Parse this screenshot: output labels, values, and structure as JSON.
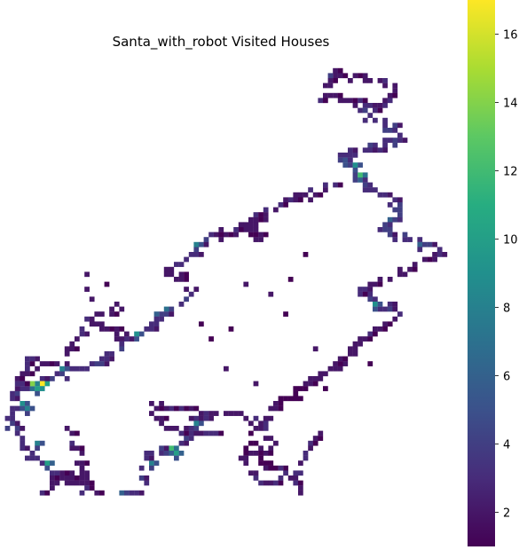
{
  "chart_data": {
    "type": "heatmap",
    "title": "Santa_with_robot Visited Houses",
    "xlabel": "",
    "ylabel": "",
    "colormap": "viridis",
    "colorbar": {
      "min": 1,
      "max": 17,
      "ticks": [
        2,
        4,
        6,
        8,
        10,
        12,
        14,
        16
      ]
    },
    "grid": false,
    "axes_visible": false,
    "segments": [
      {
        "from": [
          67,
          3
        ],
        "to": [
          64,
          8
        ],
        "value": 2,
        "hot": [
          [
            66,
            4,
            4
          ]
        ]
      },
      {
        "from": [
          64,
          8
        ],
        "to": [
          75,
          10
        ],
        "value": 2
      },
      {
        "from": [
          75,
          10
        ],
        "to": [
          79,
          6
        ],
        "value": 2
      },
      {
        "from": [
          79,
          6
        ],
        "to": [
          70,
          4
        ],
        "value": 2
      },
      {
        "from": [
          70,
          4
        ],
        "to": [
          67,
          3
        ],
        "value": 1
      },
      {
        "from": [
          72,
          11
        ],
        "to": [
          80,
          16
        ],
        "value": 3
      },
      {
        "from": [
          80,
          16
        ],
        "to": [
          68,
          20
        ],
        "value": 3
      },
      {
        "from": [
          68,
          20
        ],
        "to": [
          73,
          26
        ],
        "value": 4,
        "hot": [
          [
            71,
            22,
            9
          ],
          [
            72,
            24,
            12
          ]
        ]
      },
      {
        "from": [
          73,
          26
        ],
        "to": [
          80,
          30
        ],
        "value": 3
      },
      {
        "from": [
          80,
          30
        ],
        "to": [
          76,
          35
        ],
        "value": 4,
        "hot": [
          [
            78,
            33,
            6
          ]
        ]
      },
      {
        "from": [
          76,
          35
        ],
        "to": [
          88,
          39
        ],
        "value": 3,
        "hot": [
          [
            84,
            38,
            6
          ]
        ]
      },
      {
        "from": [
          88,
          39
        ],
        "to": [
          82,
          42
        ],
        "value": 2
      },
      {
        "from": [
          82,
          42
        ],
        "to": [
          72,
          47
        ],
        "value": 2
      },
      {
        "from": [
          72,
          47
        ],
        "to": [
          79,
          52
        ],
        "value": 3,
        "hot": [
          [
            75,
            50,
            9
          ]
        ]
      },
      {
        "from": [
          79,
          52
        ],
        "to": [
          71,
          58
        ],
        "value": 2
      },
      {
        "from": [
          71,
          58
        ],
        "to": [
          66,
          63
        ],
        "value": 2
      },
      {
        "from": [
          66,
          63
        ],
        "to": [
          61,
          66
        ],
        "value": 2
      },
      {
        "from": [
          61,
          66
        ],
        "to": [
          55,
          70
        ],
        "value": 1
      },
      {
        "from": [
          55,
          70
        ],
        "to": [
          52,
          75
        ],
        "value": 2
      },
      {
        "from": [
          52,
          75
        ],
        "to": [
          55,
          78
        ],
        "value": 2
      },
      {
        "from": [
          55,
          78
        ],
        "to": [
          50,
          80
        ],
        "value": 2
      },
      {
        "from": [
          50,
          80
        ],
        "to": [
          56,
          83
        ],
        "value": 1
      },
      {
        "from": [
          56,
          83
        ],
        "to": [
          60,
          87
        ],
        "value": 2
      },
      {
        "from": [
          60,
          87
        ],
        "to": [
          57,
          91
        ],
        "value": 2
      },
      {
        "from": [
          66,
          26
        ],
        "to": [
          57,
          29
        ],
        "value": 2
      },
      {
        "from": [
          57,
          29
        ],
        "to": [
          50,
          33
        ],
        "value": 2
      },
      {
        "from": [
          50,
          33
        ],
        "to": [
          52,
          37
        ],
        "value": 2
      },
      {
        "from": [
          52,
          37
        ],
        "to": [
          48,
          34
        ],
        "value": 1
      },
      {
        "from": [
          48,
          34
        ],
        "to": [
          42,
          36
        ],
        "value": 2
      },
      {
        "from": [
          42,
          36
        ],
        "to": [
          37,
          40
        ],
        "value": 3,
        "hot": [
          [
            39,
            38,
            8
          ]
        ]
      },
      {
        "from": [
          37,
          40
        ],
        "to": [
          33,
          43
        ],
        "value": 2
      },
      {
        "from": [
          33,
          43
        ],
        "to": [
          38,
          47
        ],
        "value": 2
      },
      {
        "from": [
          38,
          47
        ],
        "to": [
          31,
          53
        ],
        "value": 3,
        "hot": [
          [
            33,
            51,
            7
          ],
          [
            31,
            52,
            6
          ]
        ]
      },
      {
        "from": [
          31,
          53
        ],
        "to": [
          25,
          57
        ],
        "value": 3,
        "hot": [
          [
            27,
            56,
            9
          ]
        ]
      },
      {
        "from": [
          25,
          57
        ],
        "to": [
          17,
          53
        ],
        "value": 2
      },
      {
        "from": [
          17,
          53
        ],
        "to": [
          23,
          50
        ],
        "value": 2
      },
      {
        "from": [
          25,
          57
        ],
        "to": [
          19,
          62
        ],
        "value": 3
      },
      {
        "from": [
          19,
          62
        ],
        "to": [
          11,
          64
        ],
        "value": 3,
        "hot": [
          [
            12,
            63,
            8
          ]
        ]
      },
      {
        "from": [
          11,
          64
        ],
        "to": [
          2,
          68
        ],
        "value": 3,
        "hot": [
          [
            7,
            67,
            10
          ],
          [
            8,
            66,
            17
          ],
          [
            6,
            66,
            14
          ]
        ]
      },
      {
        "from": [
          2,
          68
        ],
        "to": [
          1,
          73
        ],
        "value": 3,
        "hot": [
          [
            4,
            70,
            9
          ],
          [
            5,
            71,
            8
          ]
        ]
      },
      {
        "from": [
          1,
          73
        ],
        "to": [
          5,
          80
        ],
        "value": 3,
        "hot": [
          [
            7,
            78,
            8
          ]
        ]
      },
      {
        "from": [
          5,
          80
        ],
        "to": [
          11,
          84
        ],
        "value": 3,
        "hot": [
          [
            9,
            82,
            10
          ]
        ]
      },
      {
        "from": [
          11,
          84
        ],
        "to": [
          8,
          88
        ],
        "value": 2
      },
      {
        "from": [
          11,
          84
        ],
        "to": [
          17,
          85
        ],
        "value": 2
      },
      {
        "from": [
          17,
          85
        ],
        "to": [
          13,
          75
        ],
        "value": 2
      },
      {
        "from": [
          11,
          84
        ],
        "to": [
          20,
          89
        ],
        "value": 2
      },
      {
        "from": [
          20,
          89
        ],
        "to": [
          27,
          88
        ],
        "value": 3,
        "hot": [
          [
            24,
            88,
            6
          ]
        ]
      },
      {
        "from": [
          27,
          88
        ],
        "to": [
          29,
          80
        ],
        "value": 3,
        "hot": [
          [
            30,
            82,
            8
          ]
        ]
      },
      {
        "from": [
          29,
          80
        ],
        "to": [
          36,
          78
        ],
        "value": 3,
        "hot": [
          [
            34,
            79,
            12
          ],
          [
            35,
            80,
            10
          ]
        ]
      },
      {
        "from": [
          36,
          78
        ],
        "to": [
          40,
          72
        ],
        "value": 3,
        "hot": [
          [
            39,
            74,
            8
          ]
        ]
      },
      {
        "from": [
          40,
          72
        ],
        "to": [
          47,
          72
        ],
        "value": 2
      },
      {
        "from": [
          47,
          72
        ],
        "to": [
          51,
          74
        ],
        "value": 2
      },
      {
        "from": [
          51,
          74
        ],
        "to": [
          48,
          80
        ],
        "value": 1
      },
      {
        "from": [
          48,
          80
        ],
        "to": [
          52,
          86
        ],
        "value": 2
      },
      {
        "from": [
          52,
          86
        ],
        "to": [
          59,
          84
        ],
        "value": 2
      },
      {
        "from": [
          59,
          84
        ],
        "to": [
          63,
          76
        ],
        "value": 2
      },
      {
        "from": [
          40,
          72
        ],
        "to": [
          30,
          70
        ],
        "value": 2
      },
      {
        "from": [
          30,
          70
        ],
        "to": [
          33,
          75
        ],
        "value": 2
      },
      {
        "from": [
          33,
          75
        ],
        "to": [
          43,
          76
        ],
        "value": 2
      },
      {
        "from": [
          2,
          68
        ],
        "to": [
          5,
          61
        ],
        "value": 2
      },
      {
        "from": [
          5,
          61
        ],
        "to": [
          12,
          63
        ],
        "value": 2
      },
      {
        "from": [
          12,
          63
        ],
        "to": [
          14,
          57
        ],
        "value": 2
      },
      {
        "from": [
          14,
          57
        ],
        "to": [
          17,
          54
        ],
        "value": 2
      }
    ],
    "isolated": [
      [
        17,
        44,
        2
      ],
      [
        17,
        47,
        2
      ],
      [
        18,
        49,
        2
      ],
      [
        21,
        46,
        1
      ],
      [
        24,
        51,
        2
      ],
      [
        40,
        54,
        1
      ],
      [
        42,
        57,
        1
      ],
      [
        46,
        55,
        1
      ],
      [
        45,
        63,
        2
      ],
      [
        57,
        52,
        1
      ],
      [
        63,
        59,
        2
      ],
      [
        65,
        67,
        1
      ],
      [
        74,
        62,
        1
      ],
      [
        51,
        66,
        2
      ],
      [
        49,
        46,
        2
      ],
      [
        54,
        48,
        2
      ],
      [
        61,
        40,
        1
      ],
      [
        58,
        45,
        1
      ]
    ]
  }
}
